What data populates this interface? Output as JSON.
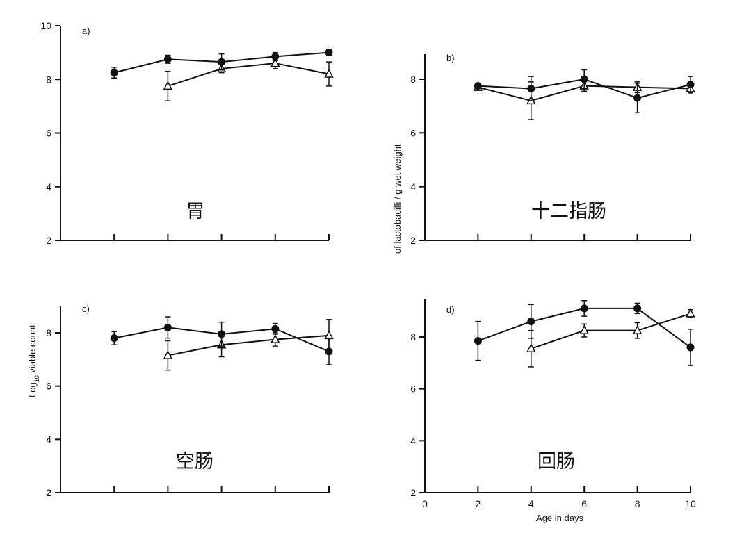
{
  "figure": {
    "ylabel_line1": "Log",
    "ylabel_sub": "10",
    "ylabel_line2": " viable count",
    "ylabel_line3": "of lactobacilli / g wet weight",
    "xlabel": "Age in days"
  },
  "chart_data": [
    {
      "type": "line",
      "panel": "a)",
      "region_label": "胃",
      "xlim": [
        0,
        10
      ],
      "ylim": [
        2,
        10
      ],
      "yticks": [
        2,
        4,
        6,
        8,
        10
      ],
      "x_ticks_labeled": false,
      "series": [
        {
          "name": "filled",
          "marker": "circle",
          "x": [
            2,
            4,
            6,
            8,
            10
          ],
          "y": [
            8.25,
            8.75,
            8.65,
            8.85,
            9.0
          ],
          "err": [
            0.2,
            0.15,
            0.3,
            0.15,
            0.1
          ]
        },
        {
          "name": "open",
          "marker": "triangle",
          "x": [
            4,
            6,
            8,
            10
          ],
          "y": [
            7.75,
            8.4,
            8.6,
            8.2
          ],
          "err": [
            0.55,
            0.15,
            0.2,
            0.45
          ]
        }
      ]
    },
    {
      "type": "line",
      "panel": "b)",
      "region_label": "十二指肠",
      "xlim": [
        0,
        10
      ],
      "ylim": [
        2,
        9
      ],
      "yticks": [
        2,
        4,
        6,
        8
      ],
      "x_ticks_labeled": false,
      "series": [
        {
          "name": "filled",
          "marker": "circle",
          "x": [
            2,
            4,
            6,
            8,
            10
          ],
          "y": [
            7.75,
            7.65,
            8.0,
            7.3,
            7.8
          ],
          "err": [
            0.1,
            0.45,
            0.35,
            0.55,
            0.3
          ]
        },
        {
          "name": "open",
          "marker": "triangle",
          "x": [
            2,
            4,
            6,
            8,
            10
          ],
          "y": [
            7.7,
            7.2,
            7.75,
            7.7,
            7.65
          ],
          "err": [
            0.1,
            0.7,
            0.2,
            0.2,
            0.2
          ]
        }
      ]
    },
    {
      "type": "line",
      "panel": "c)",
      "region_label": "空肠",
      "xlim": [
        0,
        10
      ],
      "ylim": [
        2,
        9
      ],
      "yticks": [
        2,
        4,
        6,
        8
      ],
      "x_ticks_labeled": false,
      "series": [
        {
          "name": "filled",
          "marker": "circle",
          "x": [
            2,
            4,
            6,
            8,
            10
          ],
          "y": [
            7.8,
            8.2,
            7.95,
            8.15,
            7.3
          ],
          "err": [
            0.25,
            0.4,
            0.45,
            0.2,
            0.5
          ]
        },
        {
          "name": "open",
          "marker": "triangle",
          "x": [
            4,
            6,
            8,
            10
          ],
          "y": [
            7.15,
            7.55,
            7.75,
            7.9
          ],
          "err": [
            0.55,
            0.45,
            0.25,
            0.6
          ]
        }
      ]
    },
    {
      "type": "line",
      "panel": "d)",
      "region_label": "回肠",
      "xlim": [
        0,
        10
      ],
      "ylim": [
        2,
        9.5
      ],
      "yticks": [
        2,
        4,
        6,
        8
      ],
      "xticks": [
        0,
        2,
        4,
        6,
        8,
        10
      ],
      "x_ticks_labeled": true,
      "xlabel": "Age in days",
      "series": [
        {
          "name": "filled",
          "marker": "circle",
          "x": [
            2,
            4,
            6,
            8,
            10
          ],
          "y": [
            7.85,
            8.6,
            9.1,
            9.1,
            7.6
          ],
          "err": [
            0.75,
            0.65,
            0.3,
            0.2,
            0.7
          ]
        },
        {
          "name": "open",
          "marker": "triangle",
          "x": [
            4,
            6,
            8,
            10
          ],
          "y": [
            7.55,
            8.25,
            8.25,
            8.9
          ],
          "err": [
            0.7,
            0.25,
            0.3,
            0.15
          ]
        }
      ]
    }
  ]
}
